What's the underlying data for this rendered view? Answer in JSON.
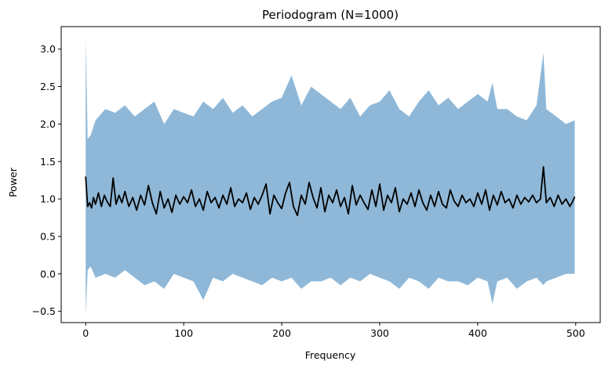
{
  "chart_data": {
    "type": "area",
    "title": "Periodogram (N=1000)",
    "xlabel": "Frequency",
    "ylabel": "Power",
    "xlim": [
      -25,
      525
    ],
    "ylim": [
      -0.65,
      3.3
    ],
    "x_ticks": [
      0,
      100,
      200,
      300,
      400,
      500
    ],
    "y_ticks": [
      -0.5,
      0.0,
      0.5,
      1.0,
      1.5,
      2.0,
      2.5,
      3.0
    ],
    "x_tick_labels": [
      "0",
      "100",
      "200",
      "300",
      "400",
      "500"
    ],
    "y_tick_labels": [
      "−0.5",
      "0.0",
      "0.5",
      "1.0",
      "1.5",
      "2.0",
      "2.5",
      "3.0"
    ],
    "grid": false,
    "colors": {
      "band": "#8fb8d8",
      "line": "#000000"
    },
    "band_description_x": [
      0,
      25,
      50,
      75,
      100,
      125,
      150,
      175,
      200,
      225,
      250,
      275,
      300,
      325,
      350,
      375,
      400,
      425,
      450,
      475,
      499
    ],
    "series": [
      {
        "type": "band",
        "x": [
          0,
          2,
          5,
          10,
          20,
          30,
          40,
          50,
          60,
          70,
          80,
          90,
          100,
          110,
          120,
          130,
          140,
          150,
          160,
          170,
          180,
          190,
          200,
          210,
          220,
          230,
          240,
          250,
          260,
          270,
          280,
          290,
          300,
          310,
          320,
          330,
          340,
          350,
          360,
          370,
          380,
          390,
          400,
          410,
          415,
          420,
          430,
          440,
          450,
          460,
          467,
          470,
          480,
          490,
          499
        ],
        "upper": [
          3.15,
          1.8,
          1.85,
          2.05,
          2.2,
          2.15,
          2.25,
          2.1,
          2.2,
          2.3,
          2.0,
          2.2,
          2.15,
          2.1,
          2.3,
          2.2,
          2.35,
          2.15,
          2.25,
          2.1,
          2.2,
          2.3,
          2.35,
          2.65,
          2.25,
          2.5,
          2.4,
          2.3,
          2.2,
          2.35,
          2.1,
          2.25,
          2.3,
          2.45,
          2.2,
          2.1,
          2.3,
          2.45,
          2.25,
          2.35,
          2.2,
          2.3,
          2.4,
          2.3,
          2.55,
          2.2,
          2.2,
          2.1,
          2.05,
          2.25,
          2.95,
          2.2,
          2.1,
          2.0,
          2.05
        ],
        "lower": [
          -0.55,
          0.05,
          0.1,
          -0.05,
          0.0,
          -0.05,
          0.05,
          -0.05,
          -0.15,
          -0.1,
          -0.2,
          0.0,
          -0.05,
          -0.1,
          -0.35,
          -0.05,
          -0.1,
          0.0,
          -0.05,
          -0.1,
          -0.15,
          -0.05,
          -0.1,
          -0.05,
          -0.2,
          -0.1,
          -0.1,
          -0.05,
          -0.15,
          -0.05,
          -0.1,
          0.0,
          -0.05,
          -0.1,
          -0.2,
          -0.05,
          -0.1,
          -0.2,
          -0.05,
          -0.1,
          -0.1,
          -0.15,
          -0.05,
          -0.1,
          -0.4,
          -0.1,
          -0.05,
          -0.2,
          -0.1,
          -0.05,
          -0.15,
          -0.1,
          -0.05,
          0.0,
          0.0
        ]
      },
      {
        "type": "line",
        "x": [
          0,
          2,
          4,
          6,
          8,
          10,
          13,
          16,
          19,
          22,
          25,
          28,
          31,
          34,
          37,
          40,
          44,
          48,
          52,
          56,
          60,
          64,
          68,
          72,
          76,
          80,
          84,
          88,
          92,
          96,
          100,
          104,
          108,
          112,
          116,
          120,
          124,
          128,
          132,
          136,
          140,
          144,
          148,
          152,
          156,
          160,
          164,
          168,
          172,
          176,
          180,
          184,
          188,
          192,
          196,
          200,
          204,
          208,
          212,
          216,
          220,
          224,
          228,
          232,
          236,
          240,
          244,
          248,
          252,
          256,
          260,
          264,
          268,
          272,
          276,
          280,
          284,
          288,
          292,
          296,
          300,
          304,
          308,
          312,
          316,
          320,
          324,
          328,
          332,
          336,
          340,
          344,
          348,
          352,
          356,
          360,
          364,
          368,
          372,
          376,
          380,
          384,
          388,
          392,
          396,
          400,
          404,
          408,
          412,
          416,
          420,
          424,
          428,
          432,
          436,
          440,
          444,
          448,
          452,
          456,
          460,
          464,
          467,
          470,
          474,
          478,
          482,
          486,
          490,
          494,
          497,
          499
        ],
        "y": [
          1.3,
          0.9,
          0.95,
          0.88,
          1.02,
          0.93,
          1.08,
          0.9,
          1.05,
          0.96,
          0.9,
          1.28,
          0.93,
          1.05,
          0.95,
          1.1,
          0.9,
          1.02,
          0.85,
          1.05,
          0.92,
          1.18,
          0.95,
          0.8,
          1.1,
          0.88,
          1.0,
          0.82,
          1.05,
          0.93,
          1.03,
          0.95,
          1.12,
          0.9,
          1.0,
          0.85,
          1.1,
          0.95,
          1.02,
          0.88,
          1.05,
          0.93,
          1.15,
          0.9,
          1.0,
          0.95,
          1.08,
          0.86,
          1.02,
          0.93,
          1.05,
          1.2,
          0.8,
          1.05,
          0.95,
          0.87,
          1.08,
          1.22,
          0.9,
          0.78,
          1.05,
          0.93,
          1.22,
          1.02,
          0.88,
          1.15,
          0.83,
          1.05,
          0.95,
          1.12,
          0.9,
          1.02,
          0.8,
          1.18,
          0.92,
          1.05,
          0.95,
          0.86,
          1.12,
          0.9,
          1.2,
          0.85,
          1.05,
          0.95,
          1.15,
          0.83,
          1.0,
          0.93,
          1.08,
          0.9,
          1.12,
          0.95,
          0.85,
          1.05,
          0.9,
          1.1,
          0.93,
          0.88,
          1.12,
          0.97,
          0.9,
          1.05,
          0.95,
          1.0,
          0.9,
          1.08,
          0.93,
          1.12,
          0.85,
          1.05,
          0.92,
          1.1,
          0.95,
          1.0,
          0.88,
          1.05,
          0.93,
          1.02,
          0.96,
          1.05,
          0.95,
          1.0,
          1.43,
          0.95,
          1.02,
          0.9,
          1.05,
          0.93,
          1.0,
          0.9,
          0.97,
          1.03
        ]
      }
    ]
  }
}
